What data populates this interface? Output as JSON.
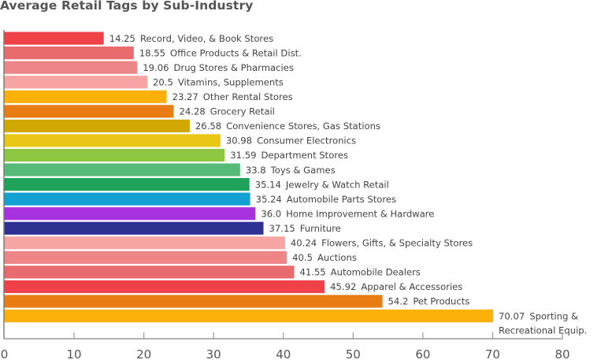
{
  "chart_data": {
    "type": "bar",
    "orientation": "horizontal",
    "title": "Average Retail Tags by Sub-Industry",
    "xlabel": "",
    "ylabel": "",
    "xlim": [
      0,
      80
    ],
    "xticks": [
      0,
      10,
      20,
      30,
      40,
      50,
      60,
      70,
      80
    ],
    "grid": false,
    "legend": "none",
    "categories": [
      "Record, Video, & Book Stores",
      "Office Products & Retail Dist.",
      "Drug Stores & Pharmacies",
      "Vitamins, Supplements",
      "Other Rental Stores",
      "Grocery Retail",
      "Convenience Stores, Gas Stations",
      "Consumer Electronics",
      "Department Stores",
      "Toys & Games",
      "Jewelry & Watch Retail",
      "Automobile Parts Stores",
      "Home Improvement & Hardware",
      "Furniture",
      "Flowers, Gifts, & Specialty Stores",
      "Auctions",
      "Automobile Dealers",
      "Apparel & Accessories",
      "Pet Products",
      "Sporting & Recreational Equip."
    ],
    "label_lines": [
      [
        "Record, Video, & Book Stores"
      ],
      [
        "Office Products & Retail Dist."
      ],
      [
        "Drug Stores & Pharmacies"
      ],
      [
        "Vitamins, Supplements"
      ],
      [
        "Other Rental Stores"
      ],
      [
        "Grocery Retail"
      ],
      [
        "Convenience Stores, Gas Stations"
      ],
      [
        "Consumer Electronics"
      ],
      [
        "Department Stores"
      ],
      [
        "Toys & Games"
      ],
      [
        "Jewelry & Watch Retail"
      ],
      [
        "Automobile Parts Stores"
      ],
      [
        "Home Improvement & Hardware"
      ],
      [
        "Furniture"
      ],
      [
        "Flowers, Gifts, & Specialty Stores"
      ],
      [
        "Auctions"
      ],
      [
        "Automobile Dealers"
      ],
      [
        "Apparel & Accessories"
      ],
      [
        "Pet Products"
      ],
      [
        "Sporting &",
        "Recreational Equip."
      ]
    ],
    "value_labels": [
      "14.25",
      "18.55",
      "19.06",
      "20.5",
      "23.27",
      "24.28",
      "26.58",
      "30.98",
      "31.59",
      "33.8",
      "35.14",
      "35.24",
      "36.0",
      "37.15",
      "40.24",
      "40.5",
      "41.55",
      "45.92",
      "54.2",
      "70.07"
    ],
    "values": [
      14.25,
      18.55,
      19.06,
      20.5,
      23.27,
      24.28,
      26.58,
      30.98,
      31.59,
      33.8,
      35.14,
      35.24,
      36.0,
      37.15,
      40.24,
      40.5,
      41.55,
      45.92,
      54.2,
      70.07
    ],
    "colors": [
      "#ef4147",
      "#ea6b6e",
      "#ee8586",
      "#f7a4a4",
      "#fcb00a",
      "#e97d14",
      "#d1a703",
      "#ebc715",
      "#8dc641",
      "#55bb76",
      "#1fa35b",
      "#13a0d3",
      "#a832e0",
      "#2e3191",
      "#f7a4a4",
      "#ee8586",
      "#ea6b6e",
      "#ef4147",
      "#e97d14",
      "#fcb00a"
    ]
  }
}
